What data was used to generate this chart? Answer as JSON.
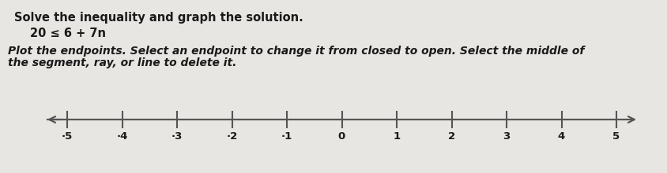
{
  "title_line1": "Solve the inequality and graph the solution.",
  "inequality": "20 ≤ 6 + 7n",
  "instruction_line1": "Plot the endpoints. Select an endpoint to change it from closed to open. Select the middle of",
  "instruction_line2": "the segment, ray, or line to delete it.",
  "tick_labels": [
    -5,
    -4,
    -3,
    -2,
    -1,
    0,
    1,
    2,
    3,
    4,
    5
  ],
  "background_color": "#e8e6e3",
  "text_color": "#1a1a1a",
  "title_fontsize": 10.5,
  "inequality_fontsize": 10.5,
  "instruction_fontsize": 10.0,
  "tick_fontsize": 9.5,
  "fig_width": 8.44,
  "fig_height": 2.2,
  "line_color": "#555555",
  "neg_prefix": "·"
}
